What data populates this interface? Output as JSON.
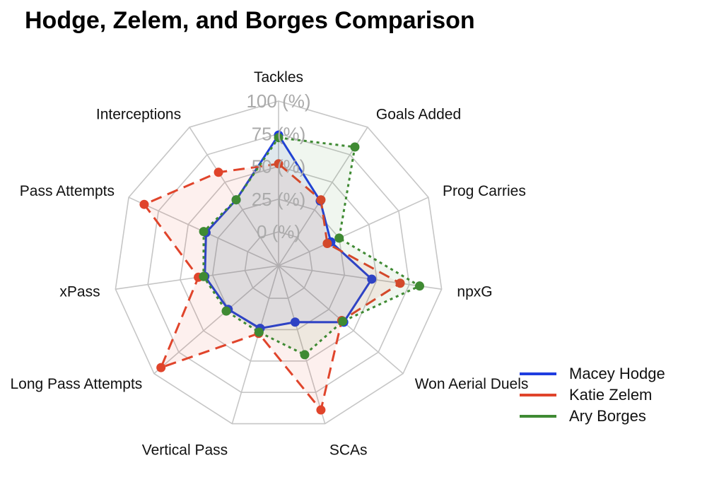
{
  "chart_data": {
    "type": "radar",
    "title": "Hodge, Zelem, and Borges Comparison",
    "axes": [
      "Tackles",
      "Goals Added",
      "Prog Carries",
      "npxG",
      "Won Aerial Duels",
      "SCAs",
      "Vertical Pass",
      "Long Pass Attempts",
      "xPass",
      "Pass Attempts",
      "Interceptions"
    ],
    "grid_labels": [
      "0 (%)",
      "25 (%)",
      "50 (%)",
      "75 (%)",
      "100 (%)"
    ],
    "range": [
      0,
      100
    ],
    "series": [
      {
        "name": "Macey Hodge",
        "color": "#1f3de0",
        "dash": "solid",
        "values": [
          74,
          33,
          18,
          46,
          40,
          19,
          24,
          25,
          31,
          35,
          34
        ]
      },
      {
        "name": "Katie Zelem",
        "color": "#e0442b",
        "dash": "long",
        "values": [
          52,
          34,
          15,
          68,
          38,
          89,
          28,
          93,
          36,
          87,
          59
        ]
      },
      {
        "name": "Ary Borges",
        "color": "#3f8a33",
        "dash": "dotted",
        "values": [
          72,
          82,
          25,
          83,
          39,
          45,
          27,
          27,
          32,
          37,
          34
        ]
      }
    ],
    "legend_position": "right",
    "grid": true
  }
}
